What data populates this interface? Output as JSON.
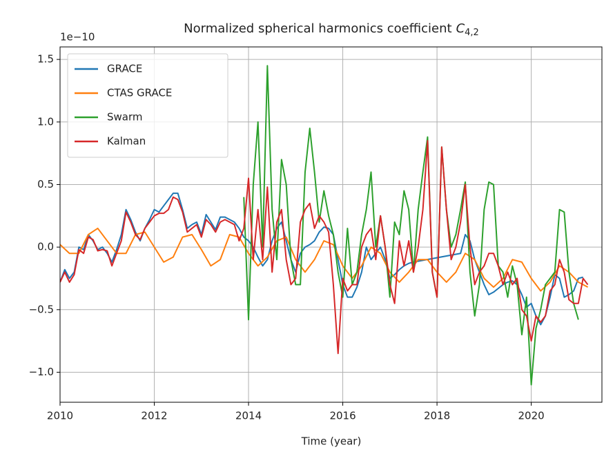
{
  "chart_data": {
    "type": "line",
    "title": "Normalized spherical harmonics coefficient",
    "title_symbol": "C",
    "title_subscript": "4,2",
    "offset_text": "1e−10",
    "xlabel": "Time (year)",
    "xlim": [
      2010,
      2021.5
    ],
    "ylim": [
      -1.24,
      1.6
    ],
    "xticks": [
      2010,
      2012,
      2014,
      2016,
      2018,
      2020
    ],
    "yticks": [
      {
        "value": -1.0,
        "label": "−1.0"
      },
      {
        "value": -0.5,
        "label": "−0.5"
      },
      {
        "value": 0.0,
        "label": "0.0"
      },
      {
        "value": 0.5,
        "label": "0.5"
      },
      {
        "value": 1.0,
        "label": "1.0"
      },
      {
        "value": 1.5,
        "label": "1.5"
      }
    ],
    "grid": true,
    "legend": "upper left",
    "series": [
      {
        "name": "GRACE",
        "color": "#1f77b4",
        "x": [
          2010.0,
          2010.1,
          2010.2,
          2010.3,
          2010.4,
          2010.5,
          2010.6,
          2010.7,
          2010.8,
          2010.9,
          2011.0,
          2011.1,
          2011.2,
          2011.3,
          2011.4,
          2011.5,
          2011.6,
          2011.7,
          2011.8,
          2011.9,
          2012.0,
          2012.1,
          2012.2,
          2012.3,
          2012.4,
          2012.5,
          2012.6,
          2012.7,
          2012.8,
          2012.9,
          2013.0,
          2013.1,
          2013.2,
          2013.3,
          2013.4,
          2013.5,
          2013.6,
          2013.7,
          2013.8,
          2013.9,
          2014.0,
          2014.1,
          2014.2,
          2014.3,
          2014.4,
          2014.5,
          2014.6,
          2014.7,
          2014.8,
          2014.9,
          2015.0,
          2015.1,
          2015.2,
          2015.3,
          2015.4,
          2015.5,
          2015.6,
          2015.7,
          2015.8,
          2015.9,
          2016.0,
          2016.1,
          2016.2,
          2016.3,
          2016.4,
          2016.5,
          2016.6,
          2016.7,
          2016.8,
          2016.9,
          2017.0,
          2017.1,
          2017.2,
          2017.3,
          2017.4,
          2017.5,
          2018.5,
          2018.6,
          2018.7,
          2018.8,
          2018.9,
          2019.0,
          2019.1,
          2019.2,
          2019.3,
          2019.4,
          2019.5,
          2019.6,
          2019.7,
          2019.8,
          2019.9,
          2020.0,
          2020.1,
          2020.2,
          2020.3,
          2020.4,
          2020.5,
          2020.6,
          2020.7,
          2020.8,
          2020.9,
          2021.0,
          2021.1
        ],
        "values": [
          -0.28,
          -0.18,
          -0.25,
          -0.2,
          0.0,
          -0.02,
          0.1,
          0.05,
          -0.02,
          0.0,
          -0.05,
          -0.12,
          -0.02,
          0.1,
          0.3,
          0.22,
          0.12,
          0.05,
          0.15,
          0.22,
          0.3,
          0.28,
          0.33,
          0.38,
          0.43,
          0.43,
          0.3,
          0.15,
          0.18,
          0.2,
          0.1,
          0.26,
          0.2,
          0.14,
          0.24,
          0.24,
          0.22,
          0.2,
          0.15,
          0.08,
          0.05,
          0.0,
          -0.08,
          -0.15,
          -0.1,
          0.05,
          0.15,
          0.2,
          0.05,
          -0.1,
          -0.2,
          -0.05,
          0.0,
          0.02,
          0.05,
          0.12,
          0.16,
          0.15,
          0.1,
          -0.1,
          -0.3,
          -0.4,
          -0.4,
          -0.32,
          -0.2,
          0.0,
          -0.1,
          -0.05,
          0.0,
          -0.1,
          -0.25,
          -0.22,
          -0.18,
          -0.15,
          -0.13,
          -0.12,
          -0.05,
          0.1,
          0.05,
          -0.1,
          -0.2,
          -0.3,
          -0.38,
          -0.36,
          -0.33,
          -0.3,
          -0.28,
          -0.27,
          -0.3,
          -0.38,
          -0.48,
          -0.45,
          -0.55,
          -0.62,
          -0.55,
          -0.4,
          -0.22,
          -0.25,
          -0.4,
          -0.38,
          -0.35,
          -0.25,
          -0.24
        ]
      },
      {
        "name": "CTAS GRACE",
        "color": "#ff7f0e",
        "x": [
          2010.0,
          2010.2,
          2010.4,
          2010.6,
          2010.8,
          2011.0,
          2011.2,
          2011.4,
          2011.6,
          2011.8,
          2012.0,
          2012.2,
          2012.4,
          2012.6,
          2012.8,
          2013.0,
          2013.2,
          2013.4,
          2013.6,
          2013.8,
          2014.0,
          2014.2,
          2014.4,
          2014.6,
          2014.8,
          2015.0,
          2015.2,
          2015.4,
          2015.6,
          2015.8,
          2016.0,
          2016.2,
          2016.4,
          2016.6,
          2016.8,
          2017.0,
          2017.2,
          2017.4,
          2017.6,
          2017.8,
          2018.0,
          2018.2,
          2018.4,
          2018.6,
          2018.8,
          2019.0,
          2019.2,
          2019.4,
          2019.6,
          2019.8,
          2020.0,
          2020.2,
          2020.4,
          2020.6,
          2020.8,
          2021.0,
          2021.2
        ],
        "values": [
          0.02,
          -0.05,
          -0.05,
          0.1,
          0.15,
          0.05,
          -0.05,
          -0.05,
          0.1,
          0.12,
          0.0,
          -0.12,
          -0.08,
          0.08,
          0.1,
          -0.02,
          -0.15,
          -0.1,
          0.1,
          0.08,
          -0.05,
          -0.15,
          -0.08,
          0.05,
          0.08,
          -0.1,
          -0.2,
          -0.1,
          0.05,
          0.02,
          -0.15,
          -0.25,
          -0.15,
          0.0,
          -0.05,
          -0.2,
          -0.28,
          -0.2,
          -0.1,
          -0.1,
          -0.2,
          -0.28,
          -0.2,
          -0.05,
          -0.1,
          -0.25,
          -0.32,
          -0.25,
          -0.1,
          -0.12,
          -0.25,
          -0.35,
          -0.28,
          -0.15,
          -0.2,
          -0.28,
          -0.32
        ]
      },
      {
        "name": "Swarm",
        "color": "#2ca02c",
        "x": [
          2013.9,
          2014.0,
          2014.1,
          2014.2,
          2014.3,
          2014.4,
          2014.5,
          2014.6,
          2014.7,
          2014.8,
          2014.9,
          2015.0,
          2015.1,
          2015.2,
          2015.3,
          2015.4,
          2015.5,
          2015.6,
          2015.7,
          2015.8,
          2015.9,
          2016.0,
          2016.1,
          2016.2,
          2016.3,
          2016.4,
          2016.5,
          2016.6,
          2016.7,
          2016.8,
          2016.9,
          2017.0,
          2017.1,
          2017.2,
          2017.3,
          2017.4,
          2017.5,
          2017.6,
          2017.7,
          2017.8,
          2017.9,
          2018.0,
          2018.1,
          2018.2,
          2018.3,
          2018.4,
          2018.5,
          2018.6,
          2018.7,
          2018.8,
          2018.9,
          2019.0,
          2019.1,
          2019.2,
          2019.3,
          2019.4,
          2019.5,
          2019.6,
          2019.7,
          2019.8,
          2019.9,
          2020.0,
          2020.1,
          2020.2,
          2020.3,
          2020.4,
          2020.5,
          2020.6,
          2020.7,
          2020.8,
          2020.9,
          2021.0
        ],
        "values": [
          0.4,
          -0.58,
          0.5,
          1.0,
          0.0,
          1.45,
          0.3,
          -0.1,
          0.7,
          0.5,
          -0.1,
          -0.3,
          -0.3,
          0.6,
          0.95,
          0.6,
          0.2,
          0.45,
          0.25,
          0.1,
          -0.2,
          -0.4,
          0.15,
          -0.3,
          -0.2,
          0.1,
          0.3,
          0.6,
          0.0,
          0.25,
          0.0,
          -0.4,
          0.2,
          0.1,
          0.45,
          0.3,
          -0.2,
          0.3,
          0.6,
          0.88,
          -0.2,
          -0.4,
          0.8,
          0.3,
          0.0,
          0.1,
          0.3,
          0.52,
          -0.2,
          -0.55,
          -0.3,
          0.3,
          0.52,
          0.5,
          -0.15,
          -0.2,
          -0.4,
          -0.15,
          -0.3,
          -0.7,
          -0.4,
          -1.1,
          -0.65,
          -0.5,
          -0.3,
          -0.25,
          -0.2,
          0.3,
          0.28,
          -0.2,
          -0.45,
          -0.58
        ]
      },
      {
        "name": "Kalman",
        "color": "#d62728",
        "x": [
          2010.0,
          2010.1,
          2010.2,
          2010.3,
          2010.4,
          2010.5,
          2010.6,
          2010.7,
          2010.8,
          2010.9,
          2011.0,
          2011.1,
          2011.2,
          2011.3,
          2011.4,
          2011.5,
          2011.6,
          2011.7,
          2011.8,
          2011.9,
          2012.0,
          2012.1,
          2012.2,
          2012.3,
          2012.4,
          2012.5,
          2012.6,
          2012.7,
          2012.8,
          2012.9,
          2013.0,
          2013.1,
          2013.2,
          2013.3,
          2013.4,
          2013.5,
          2013.6,
          2013.7,
          2013.8,
          2013.9,
          2014.0,
          2014.1,
          2014.2,
          2014.3,
          2014.4,
          2014.5,
          2014.6,
          2014.7,
          2014.8,
          2014.9,
          2015.0,
          2015.1,
          2015.2,
          2015.3,
          2015.4,
          2015.5,
          2015.6,
          2015.7,
          2015.8,
          2015.9,
          2016.0,
          2016.1,
          2016.2,
          2016.3,
          2016.4,
          2016.5,
          2016.6,
          2016.7,
          2016.8,
          2016.9,
          2017.0,
          2017.1,
          2017.2,
          2017.3,
          2017.4,
          2017.5,
          2017.6,
          2017.7,
          2017.8,
          2017.9,
          2018.0,
          2018.1,
          2018.2,
          2018.3,
          2018.4,
          2018.5,
          2018.6,
          2018.7,
          2018.8,
          2018.9,
          2019.0,
          2019.1,
          2019.2,
          2019.3,
          2019.4,
          2019.5,
          2019.6,
          2019.7,
          2019.8,
          2019.9,
          2020.0,
          2020.1,
          2020.2,
          2020.3,
          2020.4,
          2020.5,
          2020.6,
          2020.7,
          2020.8,
          2020.9,
          2021.0,
          2021.1,
          2021.2
        ],
        "values": [
          -0.28,
          -0.2,
          -0.28,
          -0.22,
          -0.02,
          -0.05,
          0.08,
          0.06,
          -0.03,
          -0.02,
          -0.03,
          -0.15,
          -0.05,
          0.05,
          0.28,
          0.2,
          0.1,
          0.06,
          0.15,
          0.2,
          0.25,
          0.27,
          0.27,
          0.3,
          0.4,
          0.38,
          0.28,
          0.12,
          0.15,
          0.18,
          0.08,
          0.22,
          0.18,
          0.12,
          0.2,
          0.22,
          0.2,
          0.18,
          0.05,
          0.15,
          0.55,
          -0.1,
          0.3,
          -0.1,
          0.48,
          -0.2,
          0.2,
          0.3,
          -0.1,
          -0.3,
          -0.25,
          0.2,
          0.3,
          0.35,
          0.15,
          0.25,
          0.2,
          0.12,
          -0.3,
          -0.85,
          -0.25,
          -0.35,
          -0.3,
          -0.3,
          0.0,
          0.1,
          0.15,
          -0.1,
          0.25,
          0.0,
          -0.3,
          -0.45,
          0.05,
          -0.15,
          0.05,
          -0.2,
          0.0,
          0.3,
          0.85,
          -0.2,
          -0.4,
          0.8,
          0.3,
          -0.1,
          0.0,
          0.2,
          0.5,
          0.0,
          -0.3,
          -0.2,
          -0.15,
          -0.05,
          -0.05,
          -0.15,
          -0.3,
          -0.2,
          -0.3,
          -0.25,
          -0.5,
          -0.55,
          -0.75,
          -0.55,
          -0.6,
          -0.55,
          -0.35,
          -0.3,
          -0.1,
          -0.2,
          -0.42,
          -0.45,
          -0.45,
          -0.25,
          -0.3
        ]
      }
    ]
  }
}
